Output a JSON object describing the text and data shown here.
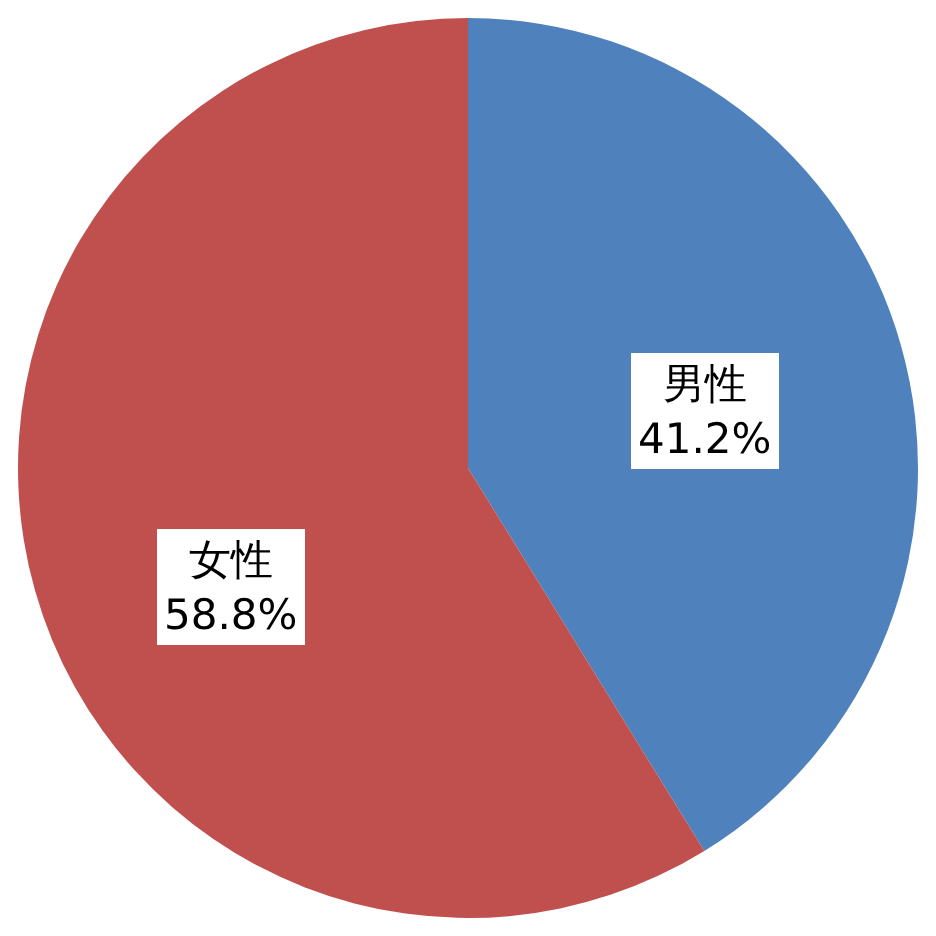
{
  "chart_data": {
    "type": "pie",
    "categories": [
      "男性",
      "女性"
    ],
    "values": [
      41.2,
      58.8
    ],
    "value_labels": [
      "41.2%",
      "58.8%"
    ],
    "colors": [
      "#4f81bd",
      "#c0504d"
    ],
    "legend": false
  }
}
